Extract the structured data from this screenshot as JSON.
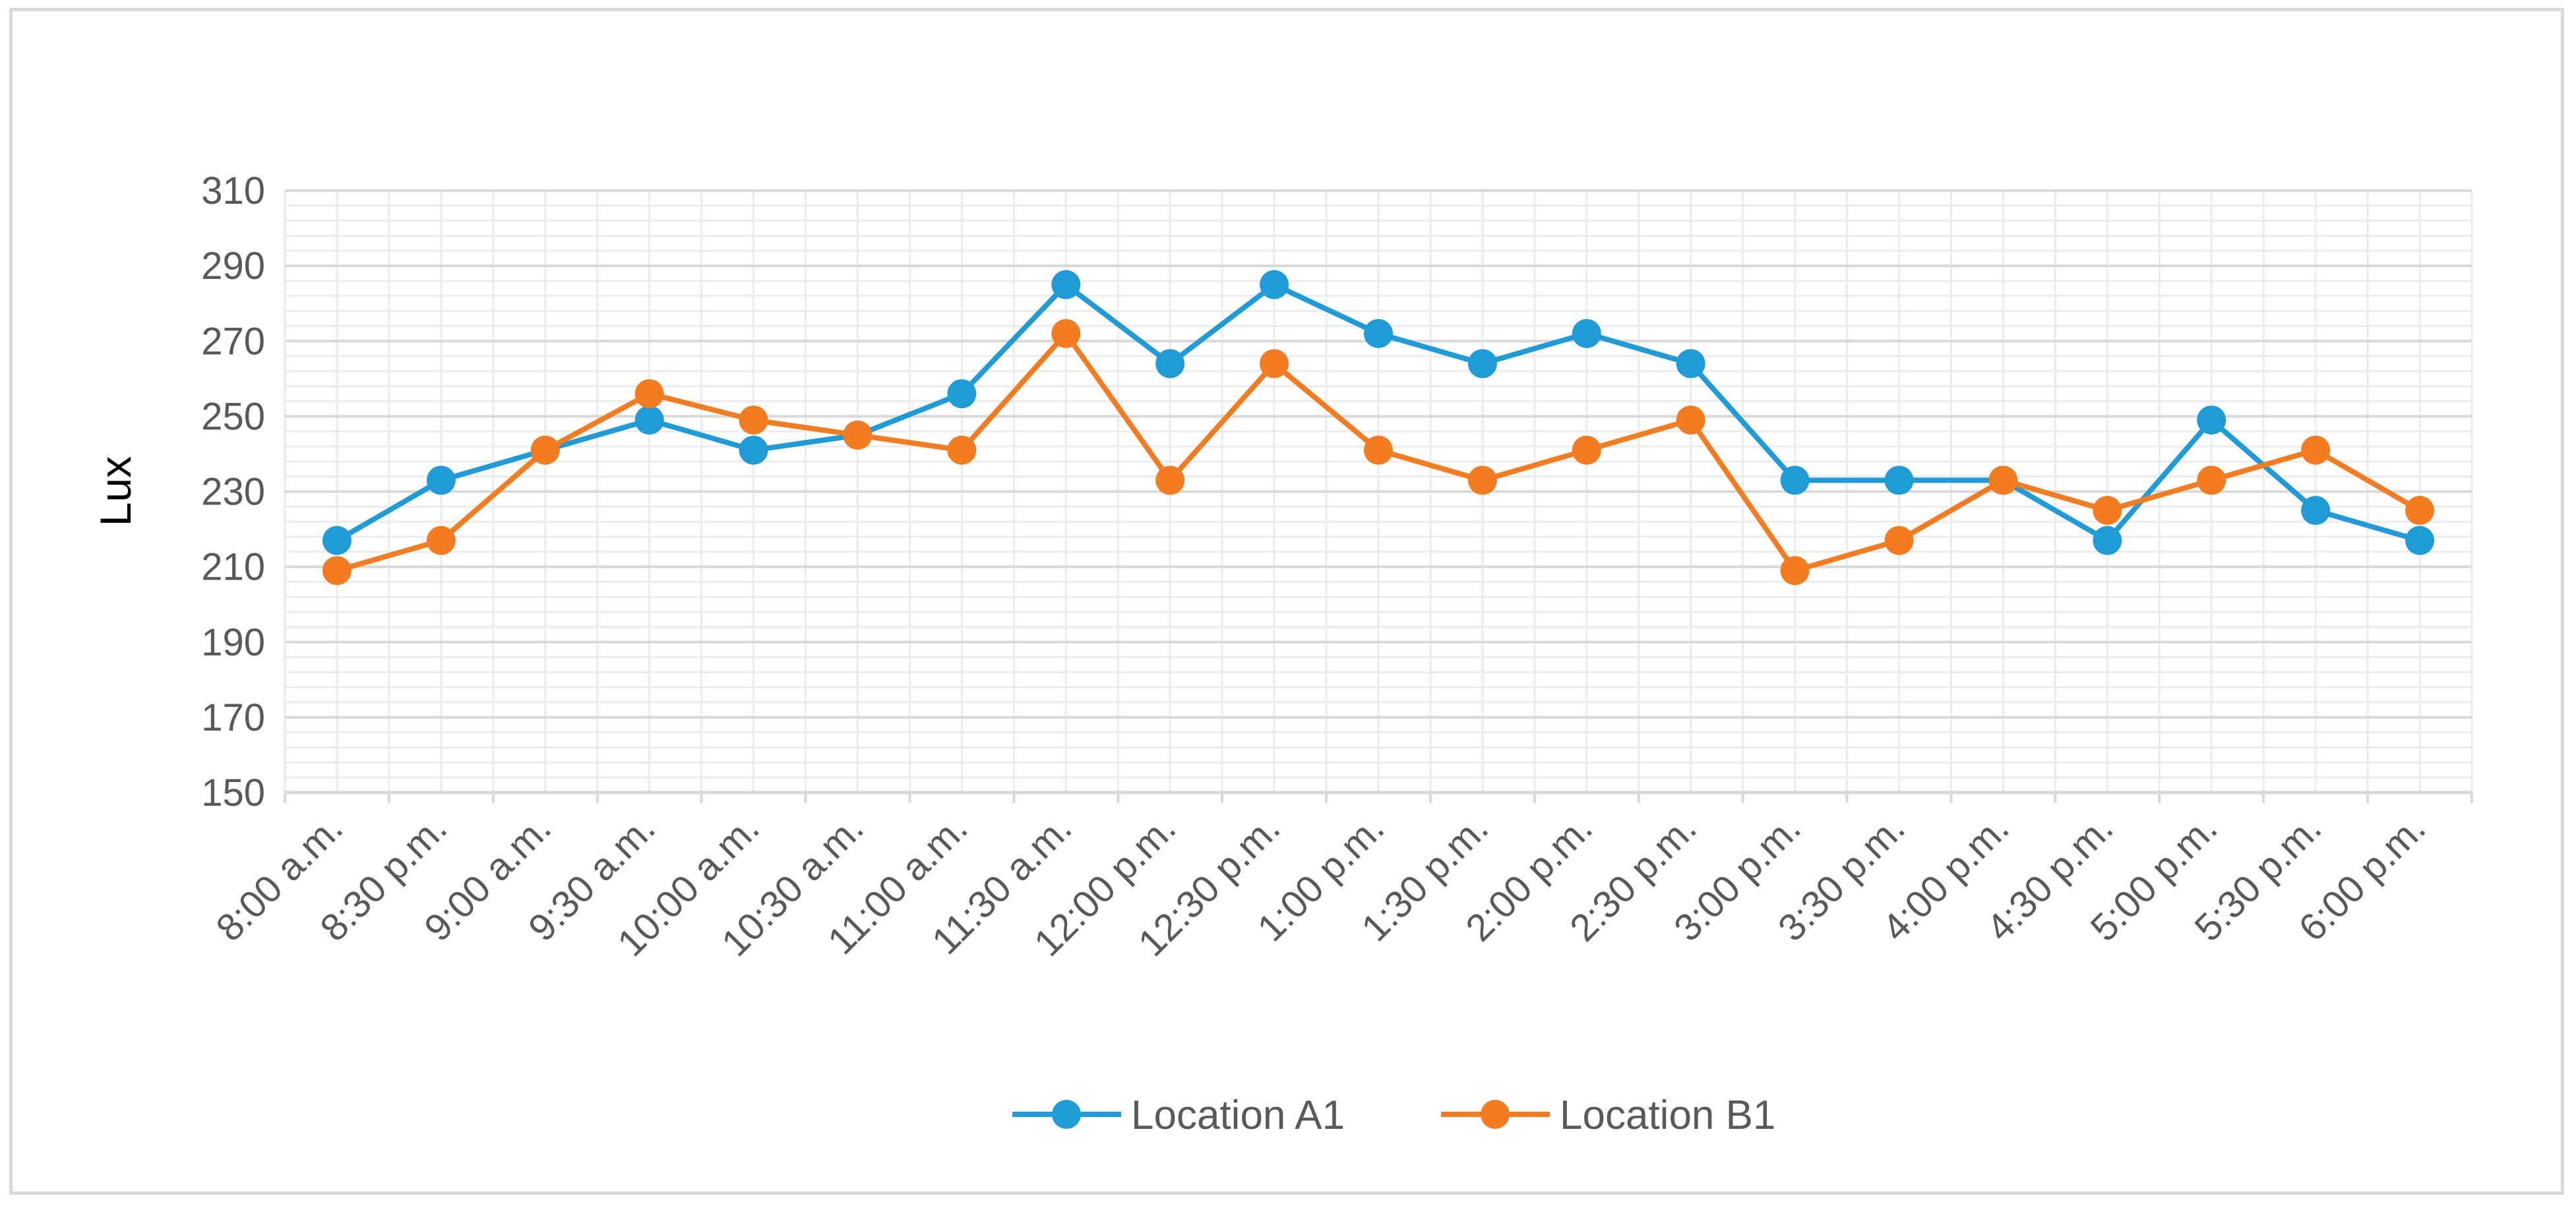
{
  "chart_data": {
    "type": "line",
    "title": "",
    "xlabel": "",
    "ylabel": "Lux",
    "ylim": [
      150,
      310
    ],
    "yticks": [
      150,
      170,
      190,
      210,
      230,
      250,
      270,
      290,
      310
    ],
    "ytick_labels": [
      "150",
      "170",
      "190",
      "210",
      "230",
      "250",
      "270",
      "290",
      "310"
    ],
    "grid": true,
    "legend_position": "bottom",
    "categories": [
      "8:00 a.m.",
      "8:30 p.m.",
      "9:00 a.m.",
      "9:30 a.m.",
      "10:00 a.m.",
      "10:30 a.m.",
      "11:00 a.m.",
      "11:30 a.m.",
      "12:00 p.m.",
      "12:30 p.m.",
      "1:00 p.m.",
      "1:30 p.m.",
      "2:00 p.m.",
      "2:30 p.m.",
      "3:00 p.m.",
      "3:30 p.m.",
      "4:00 p.m.",
      "4:30 p.m.",
      "5:00 p.m.",
      "5:30 p.m.",
      "6:00 p.m."
    ],
    "series": [
      {
        "name": "Location A1",
        "color": "#1f9bd7",
        "values": [
          217,
          233,
          241,
          249,
          241,
          245,
          256,
          285,
          264,
          285,
          272,
          264,
          272,
          264,
          233,
          233,
          233,
          217,
          249,
          225,
          217
        ]
      },
      {
        "name": "Location B1",
        "color": "#f47c20",
        "values": [
          209,
          217,
          241,
          256,
          249,
          245,
          241,
          272,
          233,
          264,
          241,
          233,
          241,
          249,
          209,
          217,
          233,
          225,
          233,
          241,
          225
        ]
      }
    ]
  }
}
